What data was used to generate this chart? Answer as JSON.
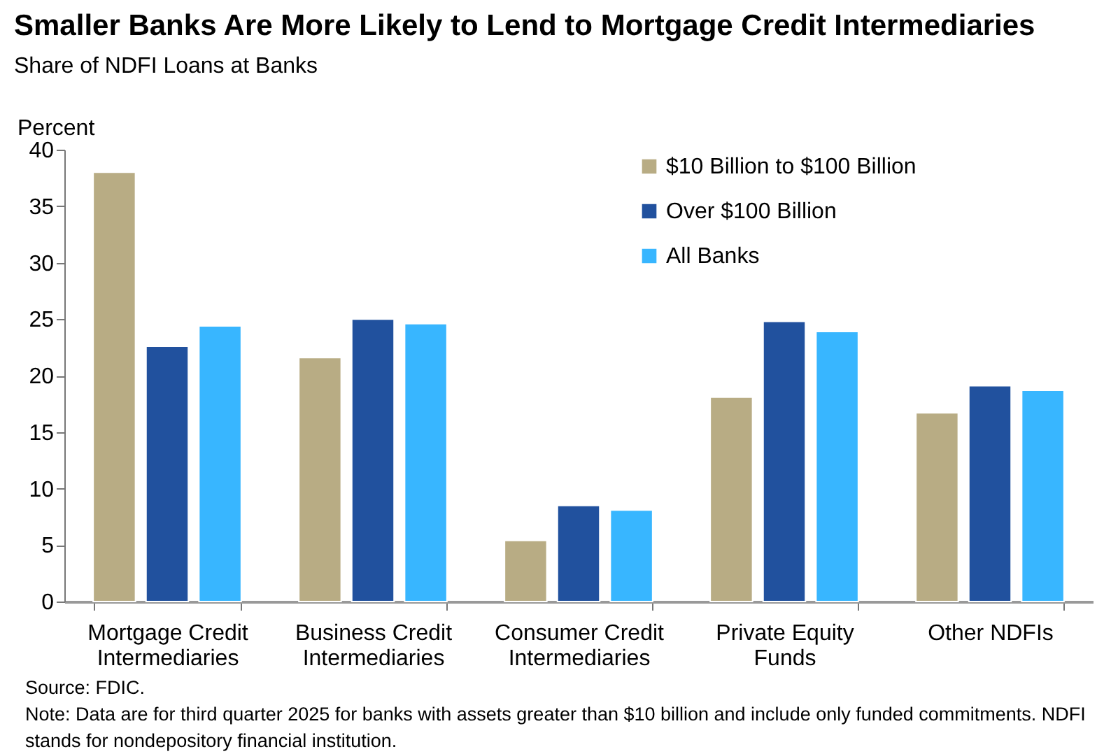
{
  "chart_data": {
    "type": "bar",
    "title": "Smaller Banks Are More Likely to Lend to Mortgage Credit Intermediaries",
    "subtitle": "Share of NDFI Loans at Banks",
    "ylabel": "Percent",
    "categories": [
      "Mortgage Credit Intermediaries",
      "Business Credit Intermediaries",
      "Consumer Credit Intermediaries",
      "Private Equity Funds",
      "Other NDFIs"
    ],
    "series": [
      {
        "name": "$10 Billion to $100 Billion",
        "color": "#b8ac84",
        "values": [
          38.0,
          21.6,
          5.4,
          18.1,
          16.7
        ]
      },
      {
        "name": "Over $100 Billion",
        "color": "#21519e",
        "values": [
          22.6,
          25.0,
          8.5,
          24.8,
          19.1
        ]
      },
      {
        "name": "All Banks",
        "color": "#38b6ff",
        "values": [
          24.4,
          24.6,
          8.1,
          23.9,
          18.7
        ]
      }
    ],
    "ylim": [
      0,
      40
    ],
    "yticks": [
      0,
      5,
      10,
      15,
      20,
      25,
      30,
      35,
      40
    ],
    "legend": "top right",
    "annotations": [
      "Source: FDIC.",
      "Note: Data are for third quarter 2025 for banks with assets greater than $10 billion and include only funded commitments. NDFI stands for nondepository financial institution."
    ]
  }
}
